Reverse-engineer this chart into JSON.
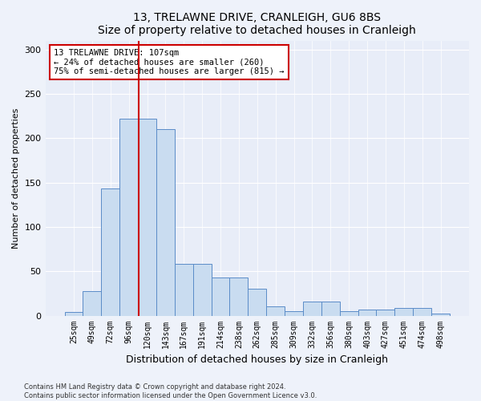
{
  "title": "13, TRELAWNE DRIVE, CRANLEIGH, GU6 8BS",
  "subtitle": "Size of property relative to detached houses in Cranleigh",
  "xlabel": "Distribution of detached houses by size in Cranleigh",
  "ylabel": "Number of detached properties",
  "categories": [
    "25sqm",
    "49sqm",
    "72sqm",
    "96sqm",
    "120sqm",
    "143sqm",
    "167sqm",
    "191sqm",
    "214sqm",
    "238sqm",
    "262sqm",
    "285sqm",
    "309sqm",
    "332sqm",
    "356sqm",
    "380sqm",
    "403sqm",
    "427sqm",
    "451sqm",
    "474sqm",
    "498sqm"
  ],
  "values": [
    4,
    28,
    143,
    222,
    222,
    210,
    58,
    58,
    43,
    43,
    30,
    10,
    5,
    16,
    16,
    5,
    7,
    7,
    9,
    9,
    2
  ],
  "bar_color": "#c9dcf0",
  "bar_edge_color": "#5b8cc8",
  "vline_x": 3.55,
  "vline_color": "#cc0000",
  "annotation_text": "13 TRELAWNE DRIVE: 107sqm\n← 24% of detached houses are smaller (260)\n75% of semi-detached houses are larger (815) →",
  "annotation_box_color": "#ffffff",
  "annotation_box_edge": "#cc0000",
  "ylim": [
    0,
    310
  ],
  "yticks": [
    0,
    50,
    100,
    150,
    200,
    250,
    300
  ],
  "footer_line1": "Contains HM Land Registry data © Crown copyright and database right 2024.",
  "footer_line2": "Contains public sector information licensed under the Open Government Licence v3.0.",
  "bg_color": "#eef2fa",
  "plot_bg_color": "#e8edf8"
}
